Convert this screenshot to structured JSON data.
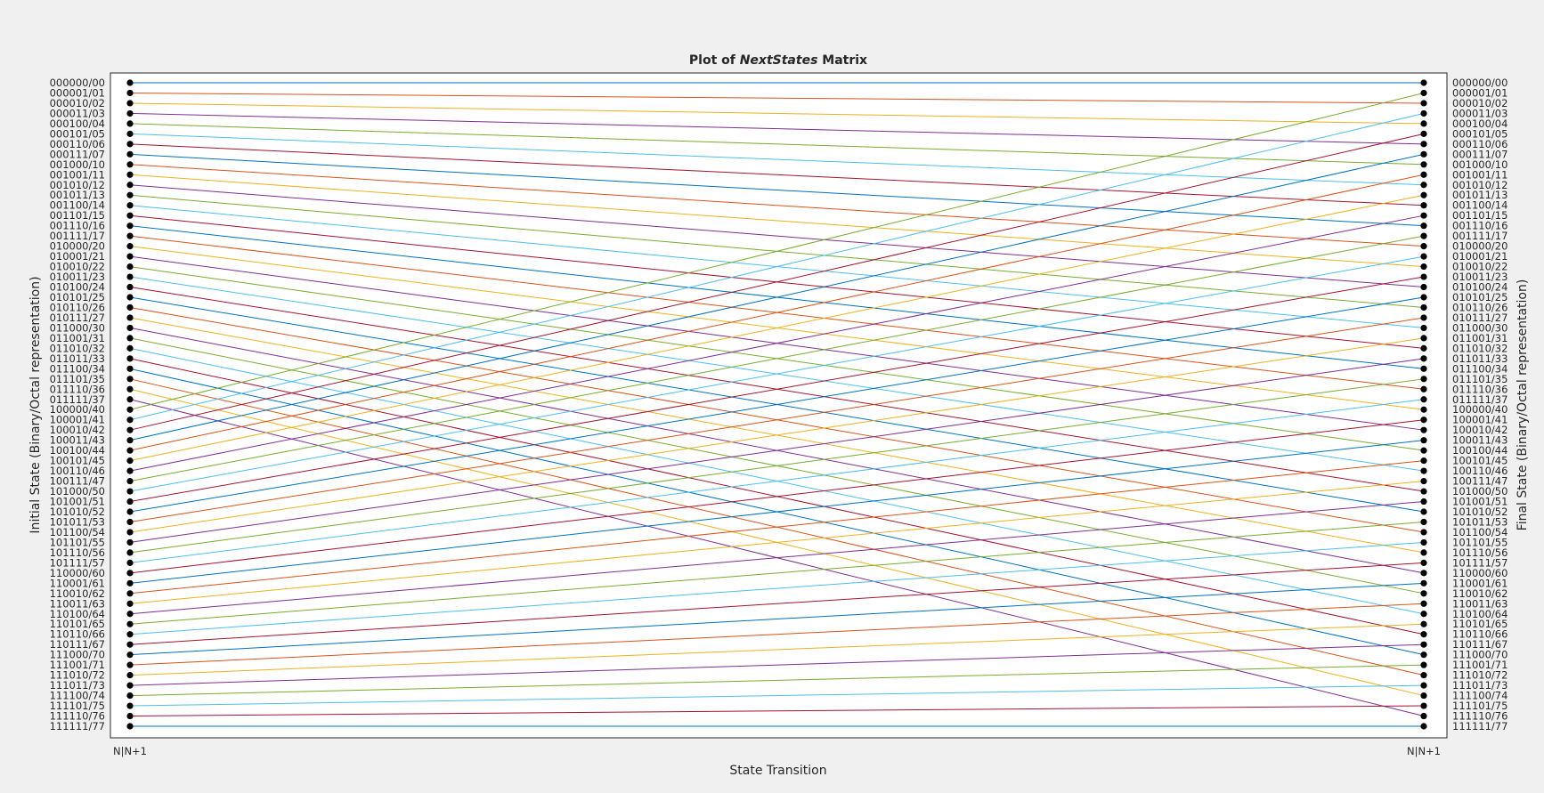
{
  "chart_data": {
    "type": "line",
    "title_prefix": "Plot of ",
    "title_italic": "NextStates",
    "title_suffix": " Matrix",
    "xlabel": "State Transition",
    "ylabel_left": "Initial State (Binary/Octal representation)",
    "ylabel_right": "Final State (Binary/Octal representation)",
    "x_ticks": [
      "N|N+1",
      "N|N+1"
    ],
    "y_labels": [
      "000000/00",
      "000001/01",
      "000010/02",
      "000011/03",
      "000100/04",
      "000101/05",
      "000110/06",
      "000111/07",
      "001000/10",
      "001001/11",
      "001010/12",
      "001011/13",
      "001100/14",
      "001101/15",
      "001110/16",
      "001111/17",
      "010000/20",
      "010001/21",
      "010010/22",
      "010011/23",
      "010100/24",
      "010101/25",
      "010110/26",
      "010111/27",
      "011000/30",
      "011001/31",
      "011010/32",
      "011011/33",
      "011100/34",
      "011101/35",
      "011110/36",
      "011111/37",
      "100000/40",
      "100001/41",
      "100010/42",
      "100011/43",
      "100100/44",
      "100101/45",
      "100110/46",
      "100111/47",
      "101000/50",
      "101001/51",
      "101010/52",
      "101011/53",
      "101100/54",
      "101101/55",
      "101110/56",
      "101111/57",
      "110000/60",
      "110001/61",
      "110010/62",
      "110011/63",
      "110100/64",
      "110101/65",
      "110110/66",
      "110111/67",
      "111000/70",
      "111001/71",
      "111010/72",
      "111011/73",
      "111100/74",
      "111101/75",
      "111110/76",
      "111111/77"
    ],
    "transitions": [
      0,
      2,
      4,
      6,
      8,
      10,
      12,
      14,
      16,
      18,
      20,
      22,
      24,
      26,
      28,
      30,
      32,
      34,
      36,
      38,
      40,
      42,
      44,
      46,
      48,
      50,
      52,
      54,
      56,
      58,
      60,
      62,
      1,
      3,
      5,
      7,
      9,
      11,
      13,
      15,
      17,
      19,
      21,
      23,
      25,
      27,
      29,
      31,
      33,
      35,
      37,
      39,
      41,
      43,
      45,
      47,
      49,
      51,
      53,
      55,
      57,
      59,
      61,
      63
    ],
    "series_colors": [
      "#0072BD",
      "#D95319",
      "#EDB120",
      "#7E2F8E",
      "#77AC30",
      "#4DBEEE",
      "#A2142F"
    ],
    "marker_color": "#000000",
    "grid": false
  }
}
